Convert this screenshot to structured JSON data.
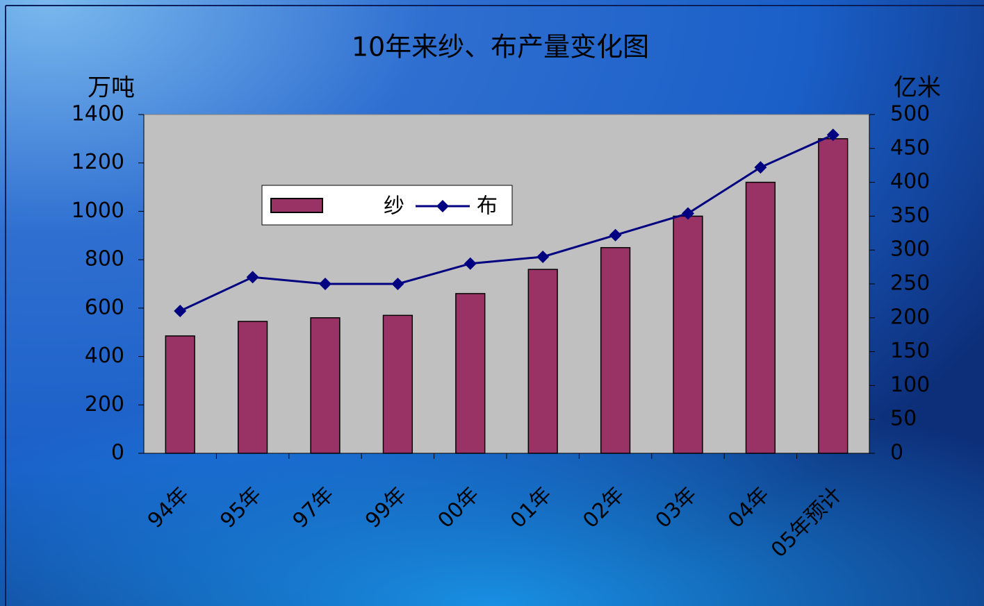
{
  "chart_data": {
    "type": "bar",
    "title": "10年来纱、布产量变化图",
    "y_label": "万吨",
    "y2_label": "亿米",
    "categories": [
      "94年",
      "95年",
      "97年",
      "99年",
      "00年",
      "01年",
      "02年",
      "03年",
      "04年",
      "05年预计"
    ],
    "series": [
      {
        "name": "纱",
        "type": "bar",
        "color": "#993366",
        "values": [
          485,
          545,
          560,
          570,
          660,
          760,
          850,
          980,
          1120,
          1300
        ]
      },
      {
        "name": "布",
        "type": "line",
        "axis": "y2",
        "color": "#000080",
        "values": [
          210,
          260,
          250,
          250,
          280,
          290,
          322,
          354,
          422,
          470
        ]
      }
    ],
    "ylim": [
      0,
      1400
    ],
    "yticks": [
      0,
      200,
      400,
      600,
      800,
      1000,
      1200,
      1400
    ],
    "y2lim": [
      0,
      500
    ],
    "y2ticks": [
      0,
      50,
      100,
      150,
      200,
      250,
      300,
      350,
      400,
      450,
      500
    ],
    "plot_background": "#c0c0c0"
  }
}
